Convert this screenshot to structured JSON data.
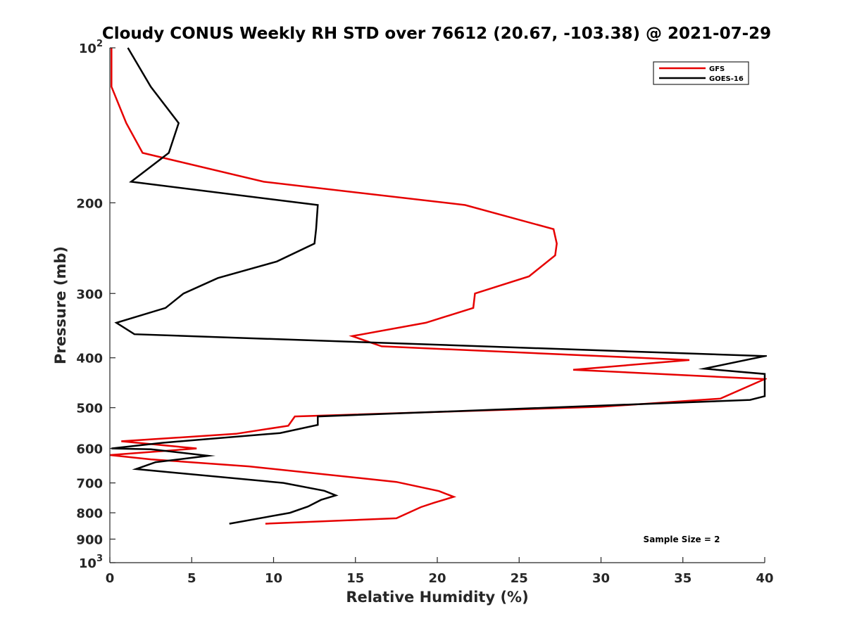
{
  "chart_data": {
    "type": "line",
    "title": "Cloudy CONUS Weekly RH STD over 76612 (20.67, -103.38) @ 2021-07-29",
    "xlabel": "Relative Humidity (%)",
    "ylabel": "Pressure (mb)",
    "xlim": [
      0,
      40
    ],
    "ylim": [
      100,
      1000
    ],
    "yscale": "log",
    "y_reversed": true,
    "grid": false,
    "legend_position": "top-right",
    "annotation": "Sample Size = 2",
    "x_ticks": [
      0,
      5,
      10,
      15,
      20,
      25,
      30,
      35,
      40
    ],
    "x_tick_labels": [
      "0",
      "5",
      "10",
      "15",
      "20",
      "25",
      "30",
      "35",
      "40"
    ],
    "y_ticks": [
      {
        "value": 100,
        "base": "10",
        "exp": "2"
      },
      {
        "value": 200,
        "label": "200"
      },
      {
        "value": 300,
        "label": "300"
      },
      {
        "value": 400,
        "label": "400"
      },
      {
        "value": 500,
        "label": "500"
      },
      {
        "value": 600,
        "label": "600"
      },
      {
        "value": 700,
        "label": "700"
      },
      {
        "value": 800,
        "label": "800"
      },
      {
        "value": 900,
        "label": "900"
      },
      {
        "value": 1000,
        "base": "10",
        "exp": "3"
      }
    ],
    "series": [
      {
        "name": "GFS",
        "color": "#e60000",
        "points": [
          [
            0.1,
            100
          ],
          [
            0.1,
            119
          ],
          [
            1.0,
            140
          ],
          [
            2.0,
            160
          ],
          [
            9.4,
            182
          ],
          [
            21.7,
            202
          ],
          [
            27.1,
            225
          ],
          [
            27.3,
            240
          ],
          [
            27.2,
            253
          ],
          [
            25.6,
            278
          ],
          [
            22.3,
            300
          ],
          [
            22.2,
            320
          ],
          [
            19.3,
            342
          ],
          [
            14.8,
            363
          ],
          [
            16.6,
            380
          ],
          [
            35.4,
            404
          ],
          [
            28.3,
            422
          ],
          [
            40.0,
            440
          ],
          [
            37.3,
            480
          ],
          [
            30.0,
            498
          ],
          [
            11.3,
            520
          ],
          [
            10.9,
            542
          ],
          [
            7.7,
            562
          ],
          [
            0.7,
            581
          ],
          [
            5.3,
            600
          ],
          [
            0.0,
            618
          ],
          [
            2.5,
            630
          ],
          [
            8.5,
            650
          ],
          [
            17.5,
            697
          ],
          [
            20.1,
            726
          ],
          [
            21.0,
            745
          ],
          [
            19.8,
            765
          ],
          [
            19.0,
            780
          ],
          [
            17.5,
            820
          ],
          [
            9.5,
            840
          ]
        ]
      },
      {
        "name": "GOES-16",
        "color": "#000000",
        "points": [
          [
            1.1,
            100
          ],
          [
            2.5,
            119
          ],
          [
            4.2,
            140
          ],
          [
            3.6,
            160
          ],
          [
            1.3,
            182
          ],
          [
            12.7,
            202
          ],
          [
            12.6,
            225
          ],
          [
            12.5,
            240
          ],
          [
            10.2,
            260
          ],
          [
            6.6,
            280
          ],
          [
            4.5,
            300
          ],
          [
            3.4,
            320
          ],
          [
            0.4,
            342
          ],
          [
            1.5,
            360
          ],
          [
            40.0,
            397
          ],
          [
            36.3,
            420
          ],
          [
            40.0,
            430
          ],
          [
            40.0,
            475
          ],
          [
            39.1,
            483
          ],
          [
            12.7,
            520
          ],
          [
            12.7,
            540
          ],
          [
            10.4,
            560
          ],
          [
            3.2,
            585
          ],
          [
            0.1,
            600
          ],
          [
            2.5,
            602
          ],
          [
            6.0,
            620
          ],
          [
            2.8,
            638
          ],
          [
            1.6,
            658
          ],
          [
            10.6,
            700
          ],
          [
            13.1,
            725
          ],
          [
            13.8,
            740
          ],
          [
            12.9,
            755
          ],
          [
            12.1,
            778
          ],
          [
            11.0,
            800
          ],
          [
            7.3,
            840
          ]
        ]
      }
    ]
  }
}
